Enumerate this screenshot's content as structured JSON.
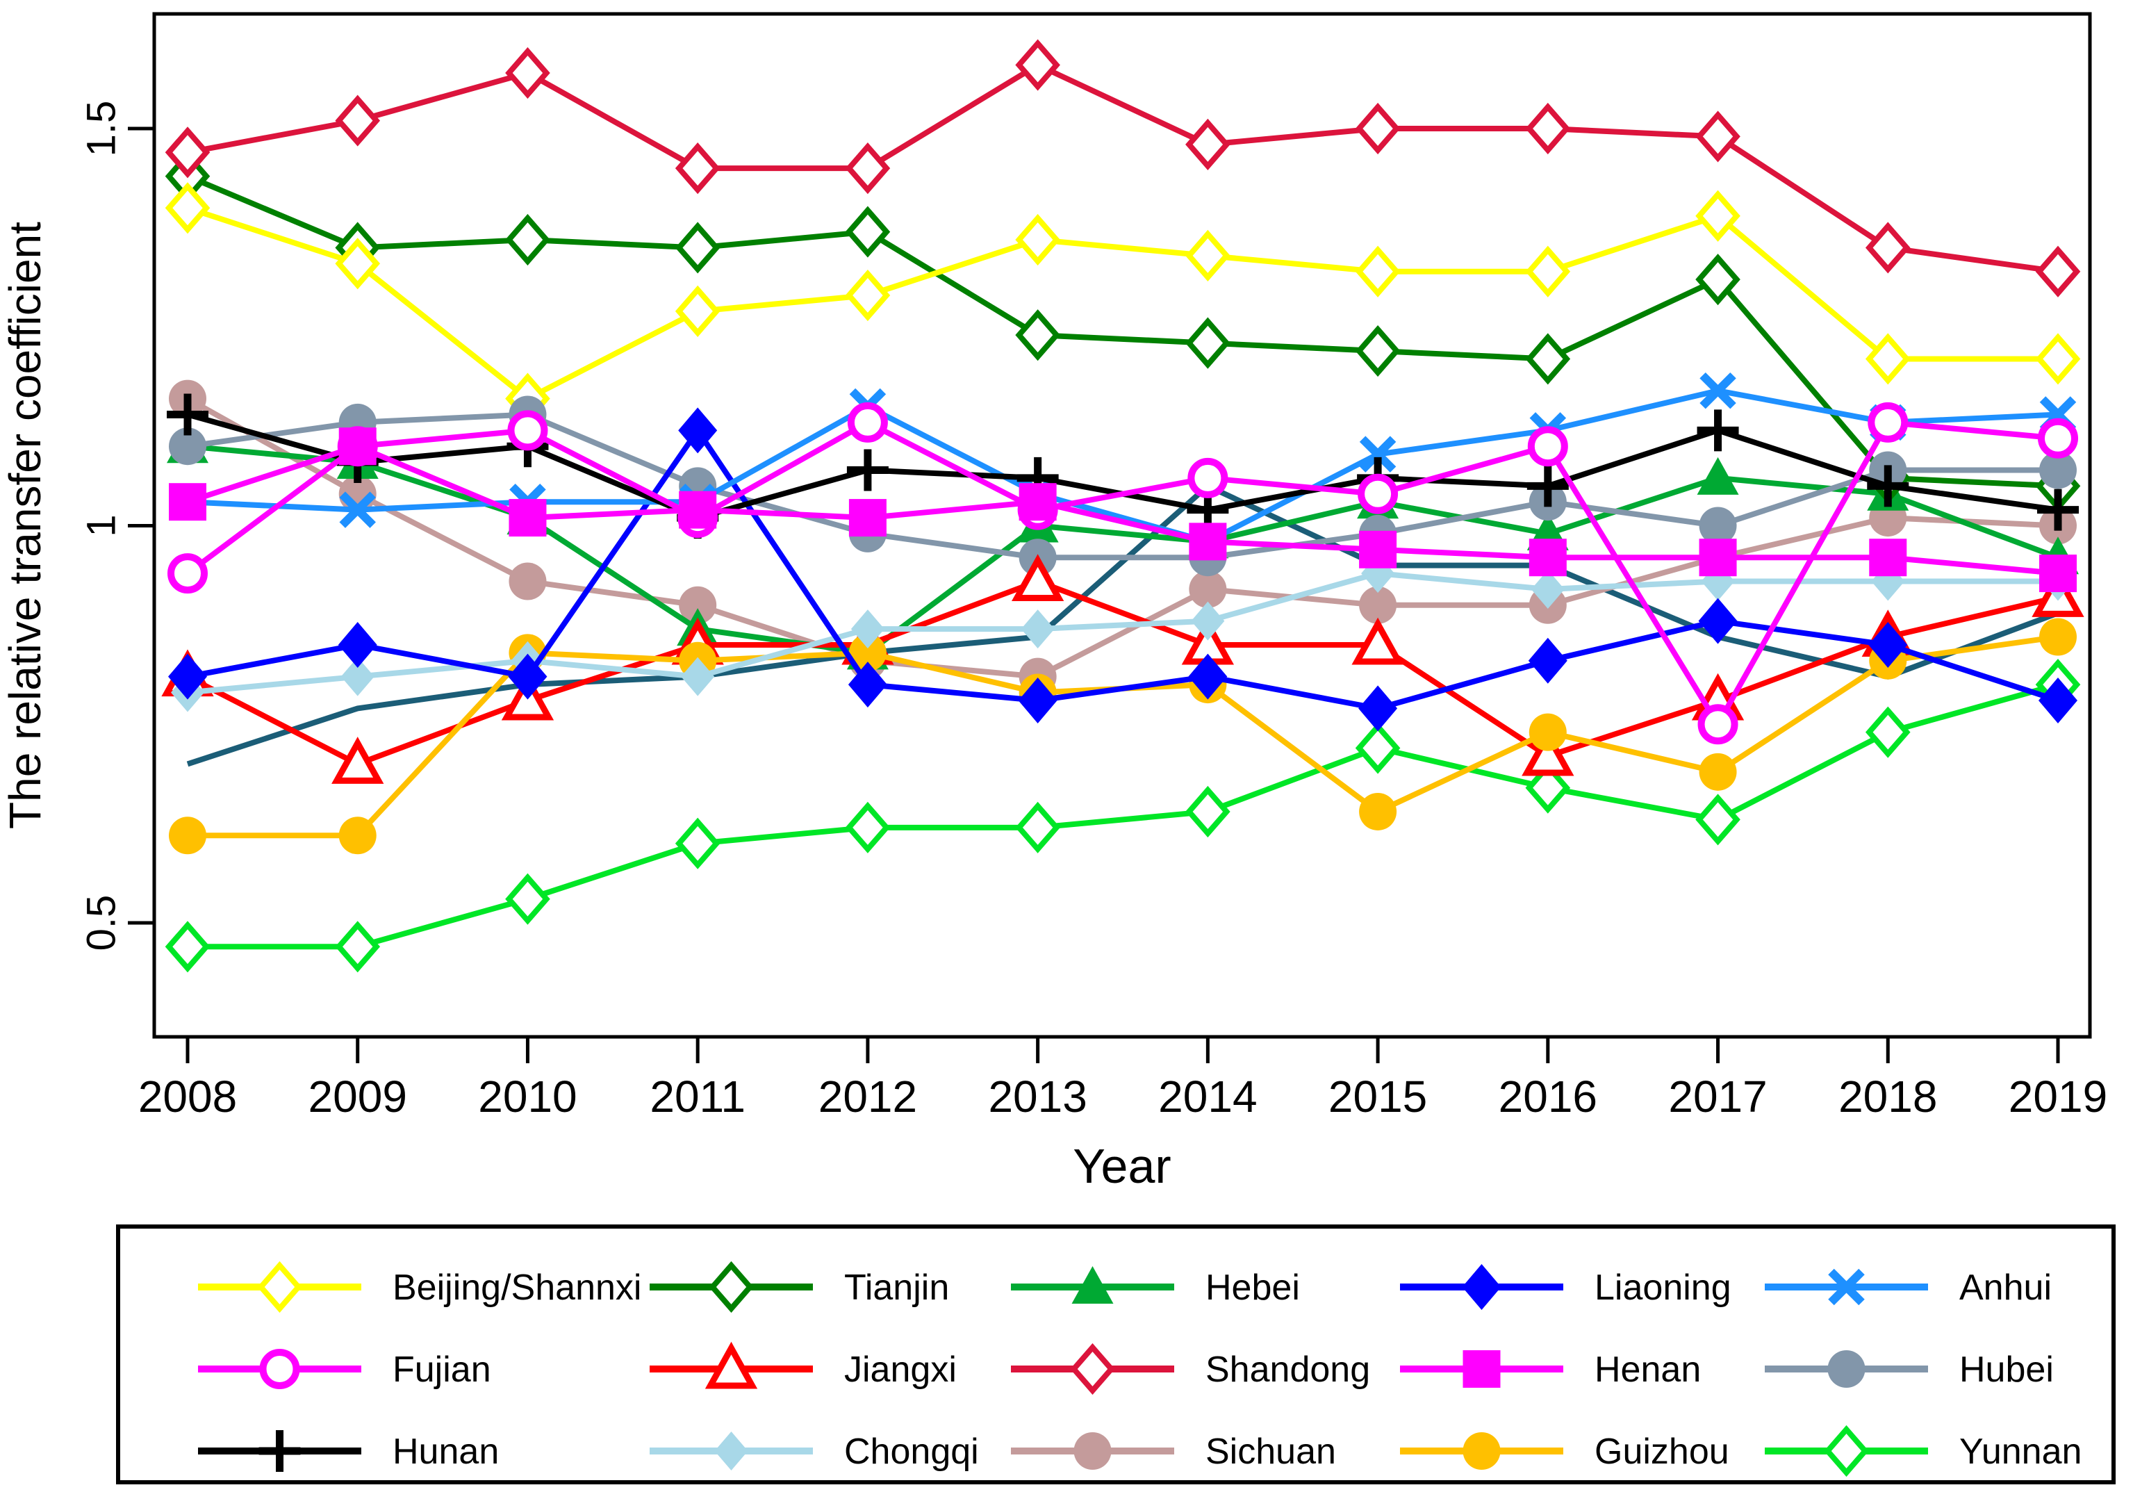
{
  "chart_data": {
    "type": "line",
    "title": "",
    "xlabel": "Year",
    "ylabel": "The relative transfer coefficient",
    "x": [
      2008,
      2009,
      2010,
      2011,
      2012,
      2013,
      2014,
      2015,
      2016,
      2017,
      2018,
      2019
    ],
    "x_labels": [
      "2008",
      "2009",
      "2010",
      "2011",
      "2012",
      "2013",
      "2014",
      "2015",
      "2016",
      "2017",
      "2018",
      "2019"
    ],
    "ytick_values": [
      0.5,
      1,
      1.5
    ],
    "ytick_labels": [
      "0.5",
      "1",
      "1.5"
    ],
    "ylim": [
      0.36,
      1.64
    ],
    "grid": "off",
    "legend_position": "bottom-box",
    "series": [
      {
        "key": "dark",
        "label": null,
        "in_legend": false,
        "color": "#1b5d77",
        "marker": "none",
        "values": [
          0.7,
          0.77,
          0.8,
          0.81,
          0.84,
          0.86,
          1.05,
          0.95,
          0.95,
          0.86,
          0.81,
          0.89
        ]
      },
      {
        "key": "sichuan",
        "label": "Sichuan",
        "in_legend": true,
        "color": "#c49b9b",
        "marker": "circle_fill",
        "values": [
          1.16,
          1.04,
          0.93,
          0.9,
          0.83,
          0.81,
          0.92,
          0.9,
          0.9,
          0.96,
          1.01,
          1.0
        ]
      },
      {
        "key": "hebei",
        "label": "Hebei",
        "in_legend": true,
        "color": "#00a933",
        "marker": "triangle_fill",
        "values": [
          1.1,
          1.08,
          1.01,
          0.87,
          0.84,
          1.0,
          0.98,
          1.03,
          0.99,
          1.06,
          1.04,
          0.96
        ]
      },
      {
        "key": "tianjin",
        "label": "Tianjin",
        "in_legend": true,
        "color": "#008000",
        "marker": "diamond_hollow",
        "values": [
          1.44,
          1.35,
          1.36,
          1.35,
          1.37,
          1.24,
          1.23,
          1.22,
          1.21,
          1.31,
          1.06,
          1.05
        ]
      },
      {
        "key": "beijing",
        "label": "Beijing/Shannxi",
        "in_legend": true,
        "color": "#ffff00",
        "marker": "diamond_hollow",
        "values": [
          1.4,
          1.33,
          1.16,
          1.27,
          1.29,
          1.36,
          1.34,
          1.32,
          1.32,
          1.39,
          1.21,
          1.21
        ]
      },
      {
        "key": "shandong",
        "label": "Shandong",
        "in_legend": true,
        "color": "#dc143c",
        "marker": "diamond_hollow",
        "values": [
          1.47,
          1.51,
          1.57,
          1.45,
          1.45,
          1.58,
          1.48,
          1.5,
          1.5,
          1.49,
          1.35,
          1.32
        ]
      },
      {
        "key": "hubei",
        "label": "Hubei",
        "in_legend": true,
        "color": "#8296aa",
        "marker": "circle_fill",
        "values": [
          1.1,
          1.13,
          1.14,
          1.05,
          0.99,
          0.96,
          0.96,
          0.99,
          1.03,
          1.0,
          1.07,
          1.07
        ]
      },
      {
        "key": "yunnan",
        "label": "Yunnan",
        "in_legend": true,
        "color": "#00e626",
        "marker": "diamond_hollow",
        "values": [
          0.47,
          0.47,
          0.53,
          0.6,
          0.62,
          0.62,
          0.64,
          0.72,
          0.67,
          0.63,
          0.74,
          0.8
        ]
      },
      {
        "key": "jiangxi",
        "label": "Jiangxi",
        "in_legend": true,
        "color": "#ff0000",
        "marker": "triangle_hollow",
        "values": [
          0.81,
          0.7,
          0.78,
          0.85,
          0.85,
          0.93,
          0.85,
          0.85,
          0.71,
          0.78,
          0.86,
          0.91
        ]
      },
      {
        "key": "guizhou",
        "label": "Guizhou",
        "in_legend": true,
        "color": "#ffc000",
        "marker": "circle_fill",
        "values": [
          0.61,
          0.61,
          0.84,
          0.83,
          0.84,
          0.79,
          0.8,
          0.64,
          0.74,
          0.69,
          0.83,
          0.86
        ]
      },
      {
        "key": "chongqi",
        "label": "Chongqi",
        "in_legend": true,
        "color": "#a8d8e8",
        "marker": "diamond_fill_small",
        "values": [
          0.79,
          0.81,
          0.83,
          0.81,
          0.87,
          0.87,
          0.88,
          0.94,
          0.92,
          0.93,
          0.93,
          0.93
        ]
      },
      {
        "key": "liaoning",
        "label": "Liaoning",
        "in_legend": true,
        "color": "#0000ff",
        "marker": "diamond_fill",
        "values": [
          0.81,
          0.85,
          0.81,
          1.12,
          0.8,
          0.78,
          0.81,
          0.77,
          0.83,
          0.88,
          0.85,
          0.78
        ]
      },
      {
        "key": "anhui",
        "label": "Anhui",
        "in_legend": true,
        "color": "#1e90ff",
        "marker": "x",
        "values": [
          1.03,
          1.02,
          1.03,
          1.03,
          1.15,
          1.04,
          0.98,
          1.09,
          1.12,
          1.17,
          1.13,
          1.14
        ]
      },
      {
        "key": "hunan",
        "label": "Hunan",
        "in_legend": true,
        "color": "#000000",
        "marker": "plus",
        "values": [
          1.14,
          1.08,
          1.1,
          1.01,
          1.07,
          1.06,
          1.02,
          1.06,
          1.05,
          1.12,
          1.05,
          1.02
        ]
      },
      {
        "key": "fujian",
        "label": "Fujian",
        "in_legend": true,
        "color": "#ff00ff",
        "marker": "circle_hollow",
        "values": [
          0.94,
          1.1,
          1.12,
          1.01,
          1.13,
          1.02,
          1.06,
          1.04,
          1.1,
          0.75,
          1.13,
          1.11
        ]
      },
      {
        "key": "henan",
        "label": "Henan",
        "in_legend": true,
        "color": "#ff00ff",
        "marker": "square_fill",
        "values": [
          1.03,
          1.1,
          1.01,
          1.02,
          1.01,
          1.03,
          0.98,
          0.97,
          0.96,
          0.96,
          0.96,
          0.94
        ]
      }
    ],
    "legend_rows": [
      [
        "beijing",
        "tianjin",
        "hebei",
        "liaoning",
        "anhui"
      ],
      [
        "fujian",
        "jiangxi",
        "shandong",
        "henan",
        "hubei"
      ],
      [
        "hunan",
        "chongqi",
        "sichuan",
        "guizhou",
        "yunnan"
      ]
    ]
  }
}
